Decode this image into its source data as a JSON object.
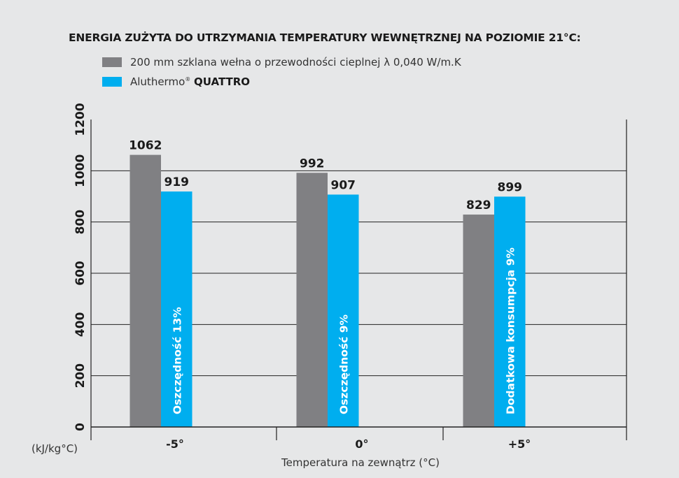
{
  "chart_data": {
    "type": "bar",
    "title": "ENERGIA ZUŻYTA DO UTRZYMANIA TEMPERATURY WEWNĘTRZNEJ NA POZIOMIE 21°C:",
    "xlabel": "Temperatura na zewnątrz (°C)",
    "ylabel": "(kJ/kg°C)",
    "categories": [
      "-5°",
      "0°",
      "+5°"
    ],
    "ylim": [
      0,
      1200
    ],
    "yticks": [
      0,
      200,
      400,
      600,
      800,
      1000,
      1200
    ],
    "grid": true,
    "legend_position": "top-left",
    "series": [
      {
        "name": "200 mm szklana wełna o przewodności cieplnej λ 0,040 W/m.K",
        "color": "#808083",
        "values": [
          1062,
          992,
          829
        ]
      },
      {
        "name": "Aluthermo® QUATTRO",
        "name_prefix": "Aluthermo",
        "name_mark": "®",
        "name_bold": "QUATTRO",
        "color": "#00aeef",
        "values": [
          919,
          907,
          899
        ]
      }
    ],
    "bar_annotations": [
      "Oszczędność 13%",
      "Oszczędność 9%",
      "Dodatkowa konsumpcja 9%"
    ]
  }
}
